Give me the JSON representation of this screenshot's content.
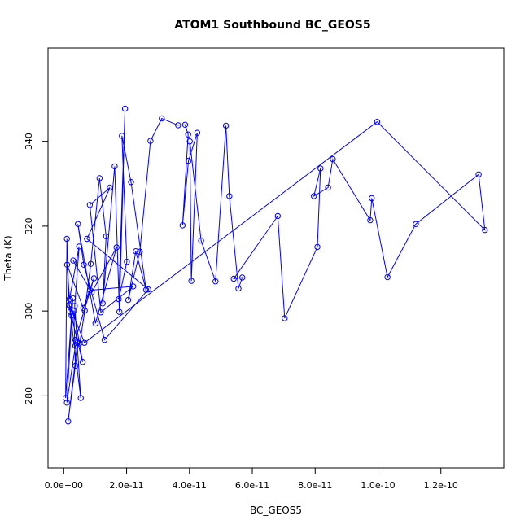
{
  "chart_data": {
    "type": "line",
    "title": "ATOM1 Southbound BC_GEOS5",
    "xlabel": "BC_GEOS5",
    "ylabel": "Theta (K)",
    "xlim": [
      -5e-12,
      1.4e-10
    ],
    "ylim": [
      263,
      362
    ],
    "x_ticks": [
      0,
      2e-11,
      4e-11,
      6e-11,
      8e-11,
      1e-10,
      1.2e-10
    ],
    "x_tick_labels": [
      "0.0e+00",
      "2.0e-11",
      "4.0e-11",
      "6.0e-11",
      "8.0e-11",
      "1.0e-10",
      "1.2e-10"
    ],
    "y_ticks": [
      280,
      300,
      320,
      340
    ],
    "y_tick_labels": [
      "280",
      "300",
      "320",
      "340"
    ],
    "grid": false,
    "series_color": "#0000ff",
    "series": [
      {
        "x": [
          1.7e-12,
          1e-12,
          5.9e-13,
          2.5e-12,
          4.4e-12,
          1.4e-12,
          3.7e-12,
          3.2e-12,
          6e-12,
          2.1e-12,
          2.9e-12,
          1e-12,
          3.7e-12,
          5.1e-12,
          6.7e-12,
          8.6e-12,
          1.14e-11,
          1.35e-11,
          1.24e-11,
          1.62e-11,
          1.77e-11,
          1.95e-11,
          1.75e-11,
          2.01e-11,
          1.85e-11,
          2.14e-11,
          2.62e-11,
          2.29e-11,
          2.05e-11,
          2.42e-11,
          2.76e-11,
          3.12e-11,
          3.64e-11,
          3.86e-11,
          3.96e-11,
          3.78e-11,
          3.97e-11,
          4.25e-11,
          4.06e-11,
          4.01e-11,
          4.37e-11,
          4.83e-11,
          5.16e-11,
          5.27e-11,
          5.56e-11,
          5.68e-11,
          5.41e-11,
          6.81e-11,
          7.03e-11,
          8.07e-11,
          8.17e-11,
          7.96e-11,
          8.41e-11,
          8.56e-11,
          9.75e-11,
          9.8e-11,
          1.03e-10,
          1.12e-10,
          1.32e-10,
          1.34e-10,
          9.97e-11,
          6.6e-12,
          1.73e-12,
          5.41e-12,
          3.49e-12,
          4.9e-12,
          1.84e-12,
          1.08e-12,
          6.2e-12,
          9.6e-12,
          3.7e-12,
          8.4e-12,
          2.21e-11,
          1.18e-11,
          8.3e-12,
          1.47e-11,
          7.4e-12,
          2.69e-11,
          1.3e-11,
          6.4e-12,
          4.5e-12,
          1.01e-11,
          1.68e-11,
          8.9e-12,
          3e-12
        ],
        "y": [
          301.2,
          317.0,
          279.5,
          298.9,
          292.6,
          274.0,
          287.1,
          300.1,
          288.0,
          299.8,
          303.0,
          278.4,
          291.8,
          292.4,
          300.1,
          311.1,
          331.3,
          317.6,
          301.8,
          334.1,
          299.8,
          347.7,
          302.8,
          311.6,
          341.3,
          330.4,
          305.0,
          314.1,
          302.6,
          314.0,
          340.1,
          345.4,
          343.8,
          343.9,
          341.6,
          320.2,
          335.4,
          342.0,
          307.1,
          340.0,
          316.6,
          307.0,
          343.7,
          327.1,
          305.3,
          307.9,
          307.6,
          322.4,
          298.3,
          315.1,
          333.6,
          327.1,
          329.1,
          335.8,
          321.4,
          326.6,
          308.0,
          320.5,
          332.2,
          319.1,
          344.6,
          292.5,
          301.5,
          279.5,
          301.2,
          315.2,
          302.8,
          310.9,
          300.7,
          307.7,
          293.2,
          304.9,
          305.8,
          299.7,
          325.0,
          329.1,
          317.0,
          305.1,
          293.2,
          310.9,
          320.5,
          297.1,
          315.0,
          304.4,
          311.9
        ]
      }
    ]
  }
}
